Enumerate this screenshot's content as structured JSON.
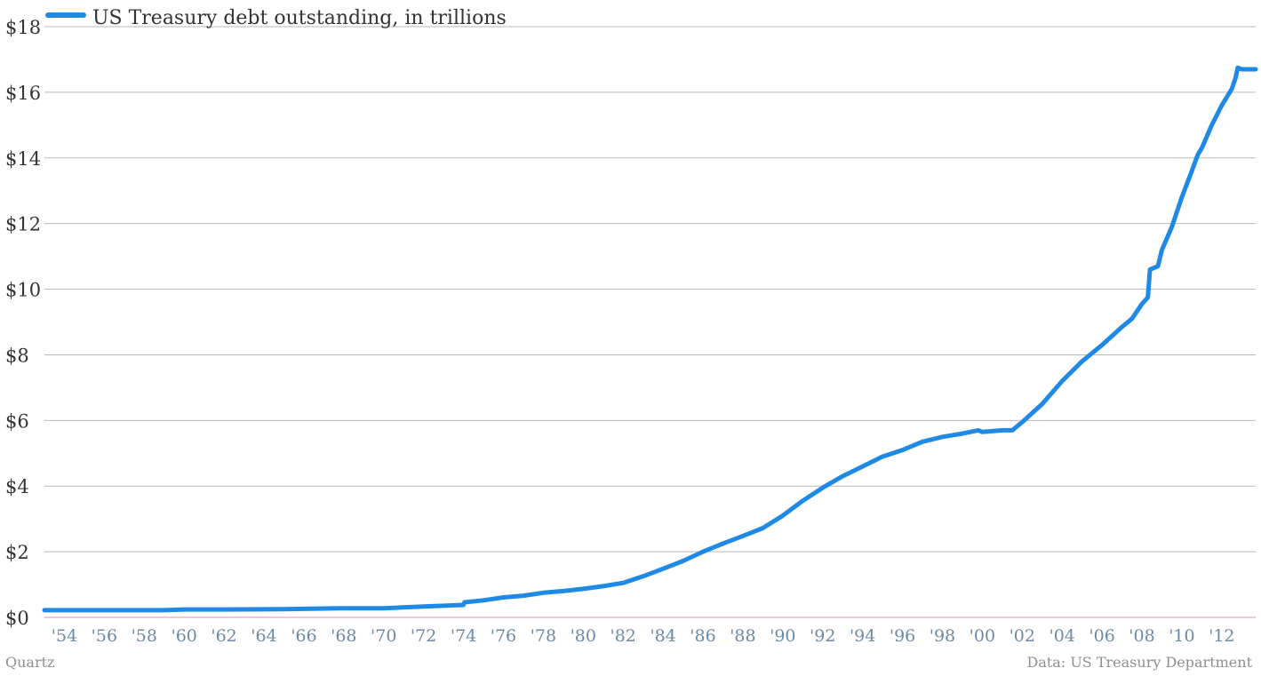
{
  "colors": {
    "series": "#1e8ae6",
    "grid": "#b9b9b9",
    "zero_line": "#e58ab4",
    "y_tick_text": "#333333",
    "x_tick_text": "#6b8aa6",
    "footer_text": "#8f8f8f"
  },
  "footer": {
    "source_left": "Quartz",
    "source_right": "Data: US Treasury Department"
  },
  "chart_data": {
    "type": "line",
    "title": "",
    "xlabel": "",
    "ylabel": "",
    "xlim": [
      1953,
      2013.7
    ],
    "ylim": [
      0,
      18
    ],
    "grid": true,
    "legend_position": "top-left",
    "y_ticks": [
      {
        "value": 0,
        "label": "$0"
      },
      {
        "value": 2,
        "label": "$2"
      },
      {
        "value": 4,
        "label": "$4"
      },
      {
        "value": 6,
        "label": "$6"
      },
      {
        "value": 8,
        "label": "$8"
      },
      {
        "value": 10,
        "label": "$10"
      },
      {
        "value": 12,
        "label": "$12"
      },
      {
        "value": 14,
        "label": "$14"
      },
      {
        "value": 16,
        "label": "$16"
      },
      {
        "value": 18,
        "label": "$18"
      }
    ],
    "x_ticks": [
      {
        "value": 1954,
        "label": "'54"
      },
      {
        "value": 1956,
        "label": "'56"
      },
      {
        "value": 1958,
        "label": "'58"
      },
      {
        "value": 1960,
        "label": "'60"
      },
      {
        "value": 1962,
        "label": "'62"
      },
      {
        "value": 1964,
        "label": "'64"
      },
      {
        "value": 1966,
        "label": "'66"
      },
      {
        "value": 1968,
        "label": "'68"
      },
      {
        "value": 1970,
        "label": "'70"
      },
      {
        "value": 1972,
        "label": "'72"
      },
      {
        "value": 1974,
        "label": "'74"
      },
      {
        "value": 1976,
        "label": "'76"
      },
      {
        "value": 1978,
        "label": "'78"
      },
      {
        "value": 1980,
        "label": "'80"
      },
      {
        "value": 1982,
        "label": "'82"
      },
      {
        "value": 1984,
        "label": "'84"
      },
      {
        "value": 1986,
        "label": "'86"
      },
      {
        "value": 1988,
        "label": "'88"
      },
      {
        "value": 1990,
        "label": "'90"
      },
      {
        "value": 1992,
        "label": "'92"
      },
      {
        "value": 1994,
        "label": "'94"
      },
      {
        "value": 1996,
        "label": "'96"
      },
      {
        "value": 1998,
        "label": "'98"
      },
      {
        "value": 2000,
        "label": "'00"
      },
      {
        "value": 2002,
        "label": "'02"
      },
      {
        "value": 2004,
        "label": "'04"
      },
      {
        "value": 2006,
        "label": "'06"
      },
      {
        "value": 2008,
        "label": "'08"
      },
      {
        "value": 2010,
        "label": "'10"
      },
      {
        "value": 2012,
        "label": "'12"
      }
    ],
    "series": [
      {
        "name": "US Treasury debt outstanding, in trillions",
        "x": [
          1953.0,
          1956.0,
          1959.0,
          1960.0,
          1962.0,
          1965.0,
          1966.0,
          1968.0,
          1970.0,
          1972.0,
          1974.0,
          1974.05,
          1975.0,
          1976.0,
          1977.0,
          1978.0,
          1979.0,
          1980.0,
          1981.0,
          1982.0,
          1983.0,
          1984.0,
          1985.0,
          1986.0,
          1987.0,
          1988.0,
          1989.0,
          1990.0,
          1991.0,
          1992.0,
          1993.0,
          1994.0,
          1995.0,
          1996.0,
          1997.0,
          1998.0,
          1999.0,
          1999.8,
          2000.0,
          2001.0,
          2001.5,
          2002.0,
          2003.0,
          2004.0,
          2005.0,
          2006.0,
          2007.0,
          2007.5,
          2008.0,
          2008.3,
          2008.4,
          2008.8,
          2009.0,
          2009.5,
          2010.0,
          2010.5,
          2010.8,
          2011.0,
          2011.5,
          2012.0,
          2012.5,
          2012.7,
          2012.8,
          2013.0,
          2013.7
        ],
        "values": [
          0.22,
          0.22,
          0.22,
          0.24,
          0.24,
          0.25,
          0.26,
          0.28,
          0.28,
          0.33,
          0.38,
          0.46,
          0.52,
          0.61,
          0.66,
          0.75,
          0.8,
          0.87,
          0.95,
          1.05,
          1.25,
          1.48,
          1.72,
          2.0,
          2.25,
          2.48,
          2.72,
          3.1,
          3.55,
          3.95,
          4.3,
          4.6,
          4.9,
          5.1,
          5.35,
          5.5,
          5.6,
          5.7,
          5.65,
          5.7,
          5.7,
          5.95,
          6.5,
          7.2,
          7.8,
          8.3,
          8.85,
          9.1,
          9.55,
          9.75,
          10.6,
          10.7,
          11.2,
          11.9,
          12.8,
          13.6,
          14.1,
          14.3,
          15.0,
          15.6,
          16.1,
          16.45,
          16.75,
          16.7,
          16.7
        ]
      }
    ]
  }
}
